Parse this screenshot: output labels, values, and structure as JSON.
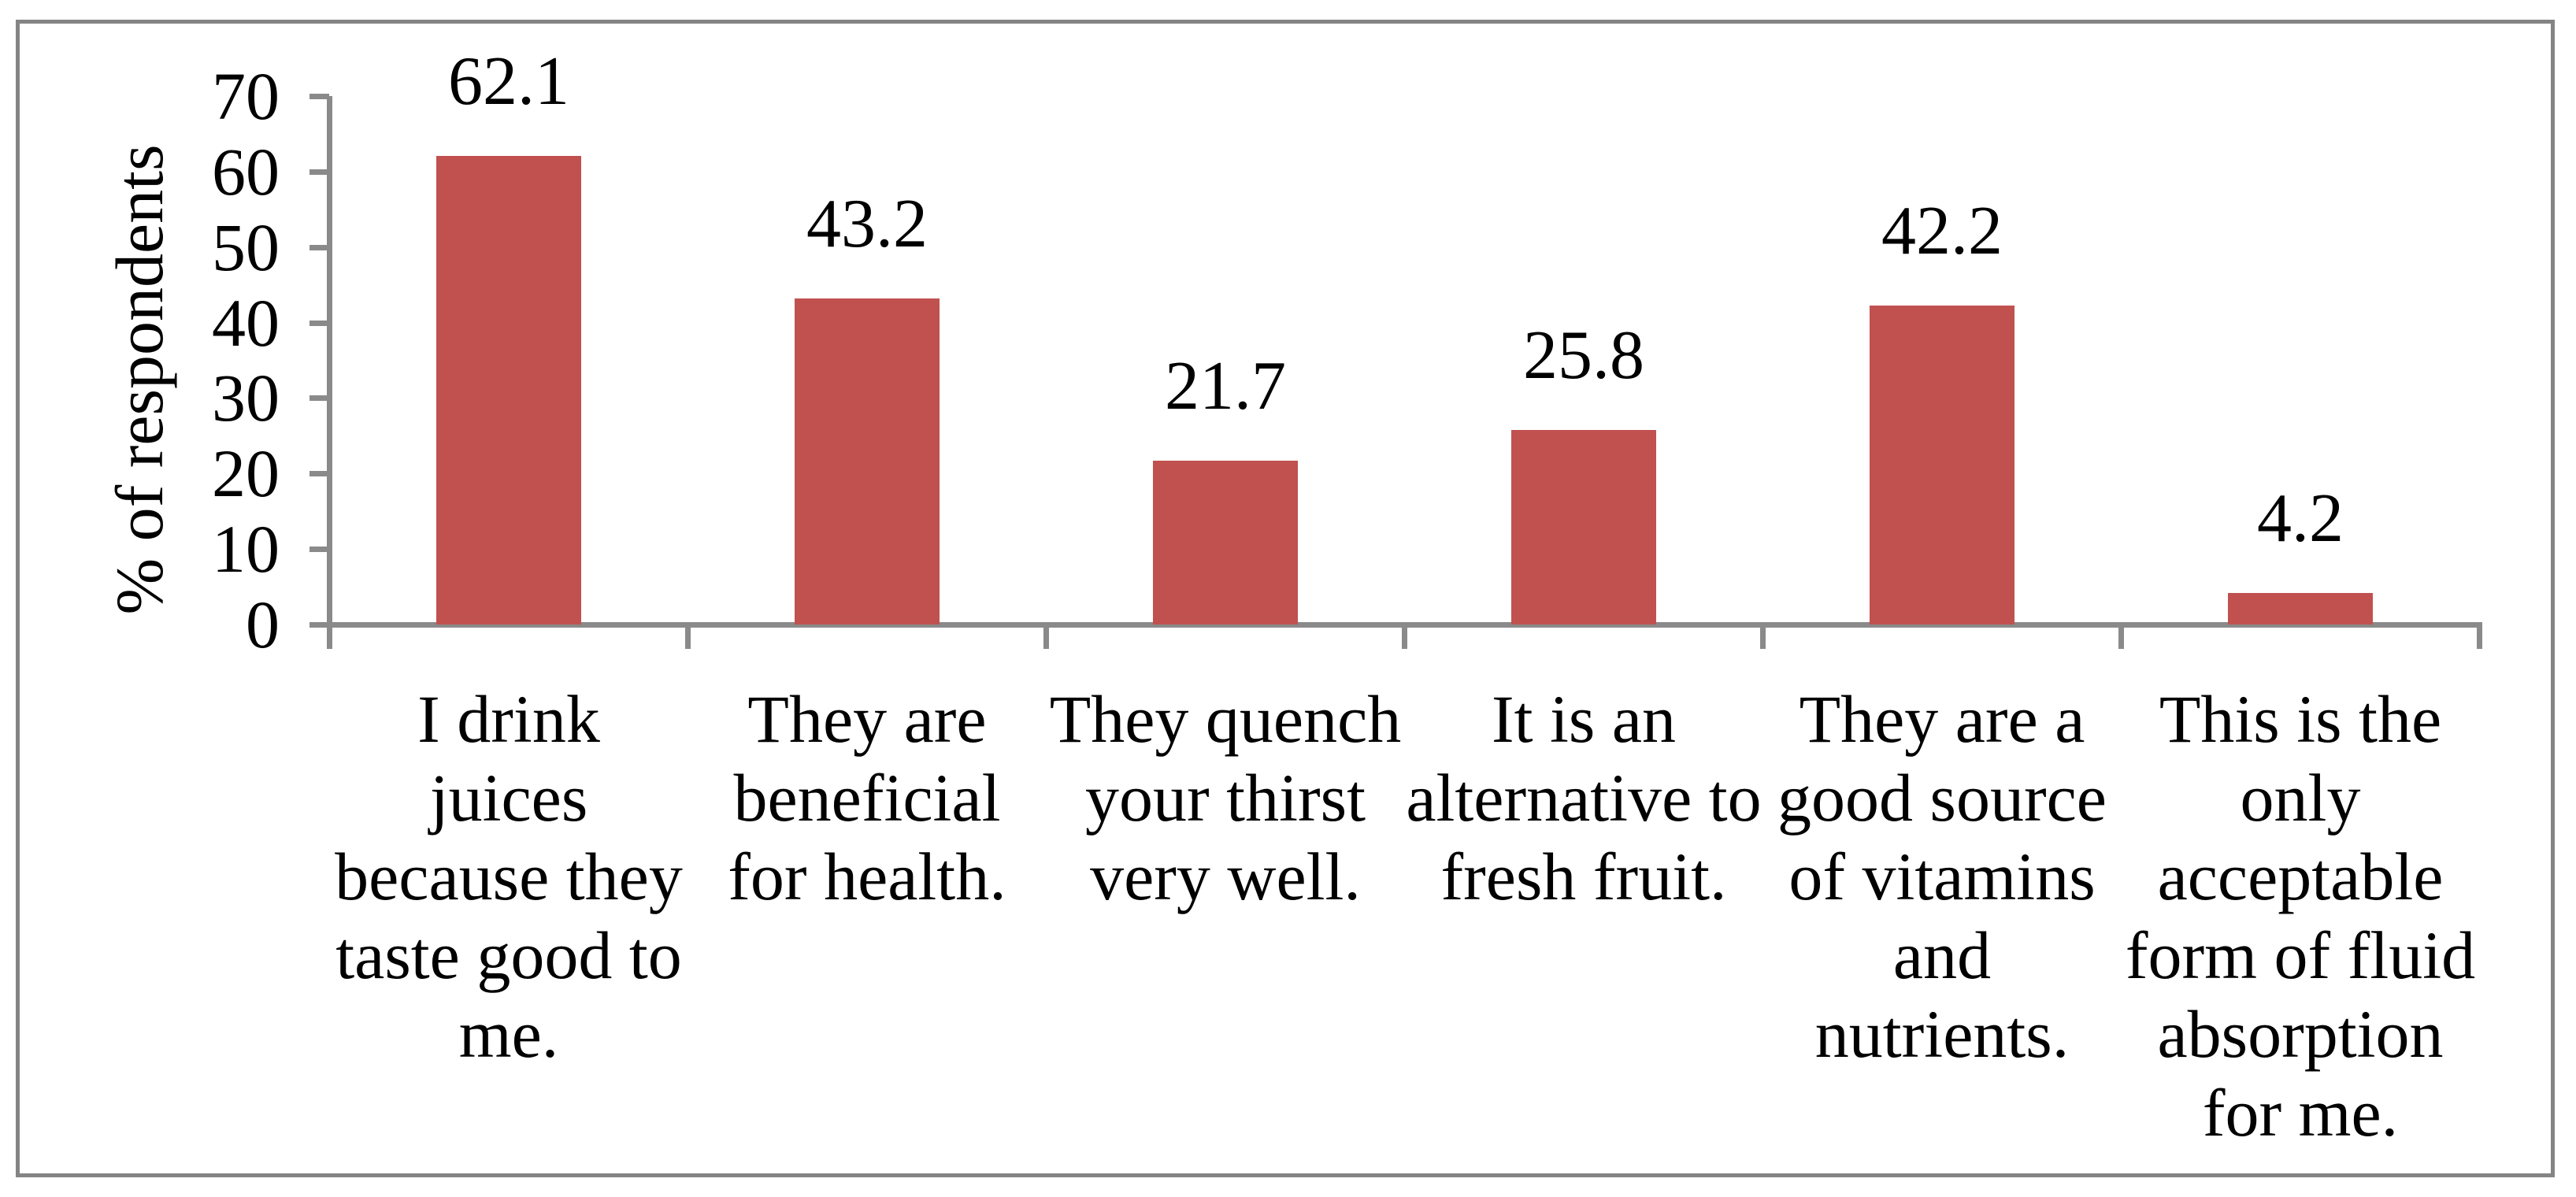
{
  "figure": {
    "background": "#ffffff",
    "border_color": "#848484"
  },
  "chart_data": {
    "type": "bar",
    "title": "",
    "xlabel": "",
    "ylabel": "% of respondents",
    "ylim": [
      0,
      70
    ],
    "yticks": [
      0,
      10,
      20,
      30,
      40,
      50,
      60,
      70
    ],
    "grid": false,
    "legend": "none",
    "bar_color": "#C0514F",
    "axis_color": "#8a8a8a",
    "text_color": "#000000",
    "categories": [
      "I drink juices because they taste good to me.",
      "They are beneficial for health.",
      "They quench your thirst very well.",
      "It is an alternative to fresh fruit.",
      "They are a good source of vitamins and nutrients.",
      "This is the only acceptable form of fluid absorption for me."
    ],
    "category_lines": [
      [
        "I drink",
        "juices",
        "because they",
        "taste good to",
        "me."
      ],
      [
        "They are",
        "beneficial",
        "for health."
      ],
      [
        "They quench",
        "your thirst",
        "very well."
      ],
      [
        "It is an",
        "alternative to",
        "fresh fruit."
      ],
      [
        "They are a",
        "good source",
        "of vitamins",
        "and",
        "nutrients."
      ],
      [
        "This is the",
        "only",
        "acceptable",
        "form of fluid",
        "absorption",
        "for me."
      ]
    ],
    "values": [
      62.1,
      43.2,
      21.7,
      25.8,
      42.2,
      4.2
    ],
    "data_labels": [
      "62.1",
      "43.2",
      "21.7",
      "25.8",
      "42.2",
      "4.2"
    ]
  }
}
